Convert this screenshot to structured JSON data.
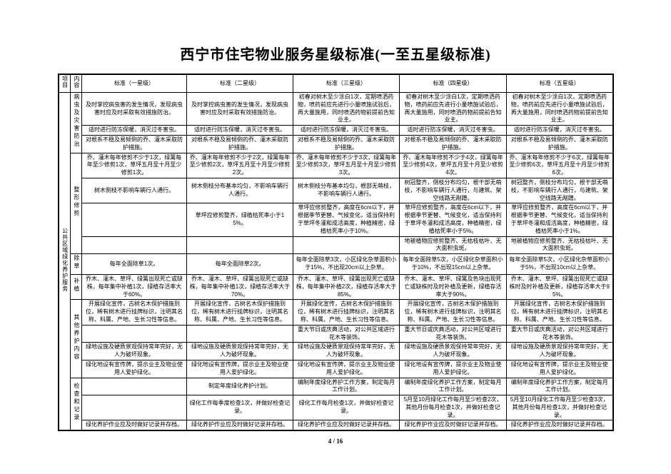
{
  "page": {
    "title": "西宁市住宅物业服务星级标准(一至五星级标准)",
    "footer": "4 / 16"
  },
  "table": {
    "col_headers": [
      "项目",
      "内容",
      "标准（一星级）",
      "标准（二星级）",
      "标准（三星级）",
      "标准（四星级）",
      "标准（五星级）"
    ],
    "project_label": "公共区域绿化养护服务",
    "sections": [
      {
        "category": "病虫及灾害防治",
        "rows": [
          [
            "及时掌控病虫害的发生情况，发现病虫害时应及时采取有效措施防治。",
            "及时掌控病虫害的发生情况，发现病虫害时应及时采取有效措施防治。",
            "初春对树木至少涂白1次，定期喷洒药物，喷药前应先进行小量喷施试验后，再大量施用，同时喷洒药物前提前告知业主。",
            "初春对树木至少涂白1次，定期喷洒药物，喷药前应先进行小量喷施试验后，再大量施用，同时喷洒药物前提前告知业主。",
            "初春对树木至少涂白1次，定期喷洒药物，喷药前应先进行小量喷施试验后，再大量施用，同时喷洒药物前提前告知业主。"
          ],
          [
            "适时进行防冻保暖，消灭过冬害虫。",
            "适时进行防冻保暖，消灭过冬害虫。",
            "适时进行防冻保暖，消灭过冬害虫。",
            "适时进行防冻保暖，消灭过冬害虫。",
            "适时进行防冻保暖，消灭过冬害虫。"
          ],
          [
            "对根系不稳及易倾倒的乔、灌木采取防护措施。",
            "对根系不稳及易倾倒的乔、灌木采取防护措施。",
            "对根系不稳及易倾倒的乔、灌木采取防护措施。",
            "对根系不稳及易倾倒的乔、灌木采取防护措施。",
            "对根系不稳及易倾倒的乔、灌木采取防护措施。"
          ]
        ]
      },
      {
        "category": "整形修剪",
        "rows": [
          [
            "乔、灌木每年修剪不少于1次，绿篱每年至少修剪1次，草坪五月至十月至少修剪1次。",
            "乔、灌木每年修剪不少于2次，绿篱每年至少修剪2次，草坪五月至十月至少修剪2次。",
            "乔、灌木每年修剪不少于3次，绿篱每年至少修剪3次，草坪五月至十月至少修剪3次。",
            "乔、灌木每年修剪不少于4次，绿篱每年至少修剪4次，草坪五月至十月至少修剪4次。",
            "乔、灌木每年修剪不少于6次，绿篱每年至少修剪6次，草坪五月至十月至少修剪6次。"
          ],
          [
            "树木侧枝不影响车辆行人通行。",
            "树木侧枝分布基本均匀，不影响车辆行人通行。",
            "树木侧枝分布基本均匀，根部无萌枝，不影响车辆行人通行。",
            "树冠整齐，侧枝分布均匀，根干部无萌枝，不影响车辆行人通行，与建筑、架空线路无剐蹭。",
            "树冠整齐，侧枝分布均匀，根干部无萌枝，不影响车辆行人通行，与建筑、架空线路无剐蹭。"
          ],
          [
            "",
            "草坪应修剪整齐，绿植枯死率小于15%。",
            "草坪应修剪整齐，高度在6cm以下，并根据季节更替、气候变化，适当保持利于草坪冬灌和成活高度，种植精密，绿植枯死率小于10%。",
            "草坪应修剪整齐，高度在6cm以下，并根据季节更替、气候变化，适当保持利于草坪冬灌和成活高度，种植精密，绿植枯死率小于5%。",
            "草坪应修剪整齐，高度在6cm以下，并根据季节更替、气候变化，适当保持利于草坪冬灌和成活高度，种植精密，绿植枯死率小于1%。"
          ],
          [
            "",
            "",
            "",
            "地被植物应修剪整齐、无枯枝枯叶、无大面积虫斑。",
            "地被植物应修剪整齐、无枯枝枯叶、无大面积虫斑。"
          ]
        ]
      },
      {
        "category": "除草",
        "rows": [
          [
            "每年全面除草1次。",
            "每年全面除草2次。",
            "每年全面除草3次，小区绿化杂草面积小于15%，不出现20cm以上杂草。",
            "每年全面除草5次，小区绿化杂草面积小于10%，不出现15cm以上杂草。",
            "每年全面除草5次，小区绿化杂草面积小于5%，不出现10cm以上杂草。"
          ]
        ]
      },
      {
        "category": "补植",
        "rows": [
          [
            "乔木、灌木、草坪、绿篱出现死亡或缺株，每年集中补植1次，绿植存活率大于60%。",
            "乔木、灌木、草坪、绿篱出现死亡或缺株，每年集中补植1次，绿植存活率大于70%。",
            "乔木、灌木、草坪、绿篱出现死亡或缺株，每年集中补植2次，绿植存活率大于85%。",
            "乔木、灌木、草坪、绿篱及色块出现死亡或缺株时及时补植及更新，绿植存活率大于90%。",
            "乔木、灌木、草坪、绿篱出现死亡或缺株时及时补植及更新，绿植存活率大于95%。"
          ]
        ]
      },
      {
        "category": "其他养护内容",
        "rows": [
          [
            "开展绿化宣传，古树名木保护措施到位，稀有树木进行挂牌标识，注明其名称、科属、产地、生长习性等信息。",
            "开展绿化宣传，古树名木保护措施到位，稀有树木进行挂牌标识，注明其名称、科属、产地、生长习性等信息。",
            "开展绿化宣传，古树名木保护措施到位，稀有树木进行挂牌标识，注明其名称、科属、产地、生长习性等信息。",
            "开展绿化宣传，古树名木保护措施到位，稀有树木进行挂牌标识，注明其名称、科属、产地、生长习性等信息。",
            "开展绿化宣传，古树名木保护措施到位，稀有树木进行挂牌标识，注明其名称、科属、产地、生长习性等信息。"
          ],
          [
            "",
            "",
            "重大节日或庆典活动，对公共区域进行花木等装饰。",
            "重大节日或庆典活动，对公共区域进行花木等装饰。",
            "重大节日或庆典活动，对公共区域进行花木等装饰。"
          ],
          [
            "绿地设施及硬质景观保持常年完好，无人为破坏现象。",
            "绿地设施及硬质景观保持常年完好，无人为破坏现象。",
            "绿地设施及硬质景观保持常年完好，无人为破坏现象。",
            "绿地设施及硬质景观保持常年完好，无人为破坏现象。",
            "绿地设施及硬质景观保持常年完好，无人为破坏现象。"
          ],
          [
            "绿化地设有宣传牌，提示业主及物业使用人爱护绿化。",
            "绿化地设有宣传牌，提示业主及物业使用人爱护绿化。",
            "绿化地设有宣传牌，提示业主及物业使用人爱护绿化。",
            "绿化地设有宣传牌，提示业主及物业使用人爱护绿化。",
            "绿化地设有宣传牌，提示业主及物业使用人爱护绿化。"
          ]
        ]
      },
      {
        "category": "检查和记录",
        "rows": [
          [
            "",
            "制定年度绿化养护计划。",
            "编制年度绿化养护工作方案，制定每月工作计划。",
            "编制年度绿化养护工作方案，制定每月工作计划。",
            "编制年度绿化养护工作方案，制定每月工作计划。"
          ],
          [
            "",
            "绿化工作每季度检查1次，并做好检查记录。",
            "绿化工作每月检查1次，并做好检查记录。",
            "5月至10月绿化工作每月至少检查2次，其他月份每月检查1次，并做好检查记录。",
            "5月至10月绿化工作每月至少检查3次，其他月份每月检查1次，并做好检查记录。"
          ],
          [
            "绿化养护作业应及时做好记录并存档。",
            "绿化养护作业应及时做好记录并存档。",
            "绿化养护作业应及时做好记录并存档。",
            "绿化养护作业应及时做好记录并存档。",
            "绿化养护作业应及时做好记录并存档。"
          ]
        ]
      }
    ]
  }
}
